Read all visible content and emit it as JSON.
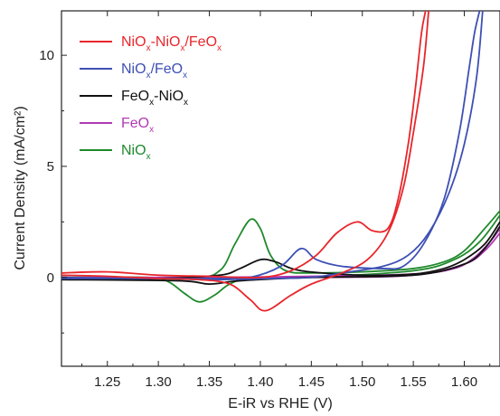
{
  "chart_data": {
    "type": "line",
    "xlabel": "E-iR vs RHE (V)",
    "ylabel": "Current Density (mA/cm²)",
    "xlim": [
      1.205,
      1.635
    ],
    "ylim": [
      -4.0,
      12.0
    ],
    "x_ticks": [
      "1.25",
      "1.30",
      "1.35",
      "1.40",
      "1.45",
      "1.50",
      "1.55",
      "1.60"
    ],
    "y_ticks": [
      "0",
      "5",
      "10"
    ],
    "legend_position": "top-left",
    "series": [
      {
        "name": "NiOx-NiOx/FeOx",
        "legend": [
          {
            "t": "NiO",
            "s": false
          },
          {
            "t": "x",
            "s": true
          },
          {
            "t": "-NiO",
            "s": false
          },
          {
            "t": "x",
            "s": true
          },
          {
            "t": "/FeO",
            "s": false
          },
          {
            "t": "x",
            "s": true
          }
        ],
        "color": "#e8262b",
        "anodic": [
          [
            1.205,
            0.2
          ],
          [
            1.25,
            0.25
          ],
          [
            1.3,
            0.1
          ],
          [
            1.35,
            0.05
          ],
          [
            1.4,
            0.0
          ],
          [
            1.43,
            0.3
          ],
          [
            1.455,
            1.0
          ],
          [
            1.475,
            2.0
          ],
          [
            1.495,
            2.5
          ],
          [
            1.51,
            2.1
          ],
          [
            1.525,
            2.2
          ],
          [
            1.535,
            3.5
          ],
          [
            1.545,
            6.0
          ],
          [
            1.552,
            8.5
          ],
          [
            1.558,
            11.0
          ],
          [
            1.562,
            12.0
          ]
        ],
        "cathodic": [
          [
            1.565,
            12.0
          ],
          [
            1.56,
            9.5
          ],
          [
            1.55,
            6.5
          ],
          [
            1.54,
            4.0
          ],
          [
            1.525,
            2.0
          ],
          [
            1.505,
            0.8
          ],
          [
            1.48,
            0.2
          ],
          [
            1.45,
            -0.3
          ],
          [
            1.43,
            -0.8
          ],
          [
            1.405,
            -1.5
          ],
          [
            1.39,
            -1.0
          ],
          [
            1.37,
            -0.3
          ],
          [
            1.34,
            -0.1
          ],
          [
            1.3,
            -0.05
          ],
          [
            1.25,
            0.05
          ],
          [
            1.205,
            0.1
          ]
        ]
      },
      {
        "name": "NiOx/FeOx",
        "legend": [
          {
            "t": "NiO",
            "s": false
          },
          {
            "t": "x",
            "s": true
          },
          {
            "t": "/FeO",
            "s": false
          },
          {
            "t": "x",
            "s": true
          }
        ],
        "color": "#3e50b4",
        "anodic": [
          [
            1.205,
            0.0
          ],
          [
            1.3,
            -0.05
          ],
          [
            1.36,
            -0.05
          ],
          [
            1.39,
            0.0
          ],
          [
            1.42,
            0.5
          ],
          [
            1.44,
            1.3
          ],
          [
            1.455,
            0.8
          ],
          [
            1.48,
            0.5
          ],
          [
            1.52,
            0.4
          ],
          [
            1.54,
            0.5
          ],
          [
            1.56,
            1.5
          ],
          [
            1.58,
            3.5
          ],
          [
            1.595,
            6.5
          ],
          [
            1.605,
            9.5
          ],
          [
            1.61,
            11.0
          ],
          [
            1.615,
            12.0
          ]
        ],
        "cathodic": [
          [
            1.618,
            12.0
          ],
          [
            1.612,
            9.0
          ],
          [
            1.6,
            6.0
          ],
          [
            1.585,
            3.8
          ],
          [
            1.565,
            2.0
          ],
          [
            1.545,
            1.0
          ],
          [
            1.52,
            0.5
          ],
          [
            1.48,
            0.2
          ],
          [
            1.45,
            0.0
          ],
          [
            1.41,
            -0.05
          ],
          [
            1.35,
            -0.1
          ],
          [
            1.3,
            -0.05
          ],
          [
            1.205,
            -0.05
          ]
        ]
      },
      {
        "name": "FeOx-NiOx",
        "legend": [
          {
            "t": "FeO",
            "s": false
          },
          {
            "t": "x",
            "s": true
          },
          {
            "t": "-NiO",
            "s": false
          },
          {
            "t": "x",
            "s": true
          }
        ],
        "color": "#111111",
        "anodic": [
          [
            1.205,
            -0.05
          ],
          [
            1.3,
            -0.05
          ],
          [
            1.36,
            0.1
          ],
          [
            1.38,
            0.4
          ],
          [
            1.4,
            0.8
          ],
          [
            1.415,
            0.7
          ],
          [
            1.44,
            0.3
          ],
          [
            1.5,
            0.1
          ],
          [
            1.55,
            0.15
          ],
          [
            1.58,
            0.4
          ],
          [
            1.6,
            0.8
          ],
          [
            1.62,
            1.5
          ],
          [
            1.635,
            2.5
          ]
        ],
        "cathodic": [
          [
            1.635,
            2.3
          ],
          [
            1.62,
            1.3
          ],
          [
            1.6,
            0.6
          ],
          [
            1.55,
            0.1
          ],
          [
            1.45,
            0.0
          ],
          [
            1.38,
            -0.15
          ],
          [
            1.35,
            -0.3
          ],
          [
            1.32,
            -0.15
          ],
          [
            1.205,
            -0.1
          ]
        ]
      },
      {
        "name": "FeOx",
        "legend": [
          {
            "t": "FeO",
            "s": false
          },
          {
            "t": "x",
            "s": true
          }
        ],
        "color": "#b13ab5",
        "anodic": [
          [
            1.205,
            0.0
          ],
          [
            1.35,
            0.0
          ],
          [
            1.45,
            0.05
          ],
          [
            1.55,
            0.15
          ],
          [
            1.59,
            0.4
          ],
          [
            1.61,
            0.9
          ],
          [
            1.625,
            1.6
          ],
          [
            1.635,
            2.2
          ]
        ],
        "cathodic": [
          [
            1.635,
            2.0
          ],
          [
            1.62,
            1.2
          ],
          [
            1.6,
            0.6
          ],
          [
            1.55,
            0.1
          ],
          [
            1.45,
            0.0
          ],
          [
            1.205,
            -0.05
          ]
        ]
      },
      {
        "name": "NiOx",
        "legend": [
          {
            "t": "NiO",
            "s": false
          },
          {
            "t": "x",
            "s": true
          }
        ],
        "color": "#1f8a2c",
        "anodic": [
          [
            1.205,
            0.0
          ],
          [
            1.33,
            0.0
          ],
          [
            1.36,
            0.3
          ],
          [
            1.375,
            1.5
          ],
          [
            1.39,
            2.6
          ],
          [
            1.4,
            2.2
          ],
          [
            1.41,
            1.0
          ],
          [
            1.425,
            0.3
          ],
          [
            1.45,
            0.2
          ],
          [
            1.5,
            0.25
          ],
          [
            1.55,
            0.4
          ],
          [
            1.58,
            0.7
          ],
          [
            1.6,
            1.2
          ],
          [
            1.62,
            2.2
          ],
          [
            1.635,
            3.0
          ]
        ],
        "cathodic": [
          [
            1.635,
            2.8
          ],
          [
            1.615,
            1.6
          ],
          [
            1.59,
            0.8
          ],
          [
            1.55,
            0.3
          ],
          [
            1.45,
            0.0
          ],
          [
            1.39,
            -0.05
          ],
          [
            1.37,
            -0.3
          ],
          [
            1.355,
            -0.8
          ],
          [
            1.34,
            -1.1
          ],
          [
            1.325,
            -0.7
          ],
          [
            1.31,
            -0.2
          ],
          [
            1.29,
            0.0
          ],
          [
            1.205,
            0.0
          ]
        ]
      }
    ]
  }
}
